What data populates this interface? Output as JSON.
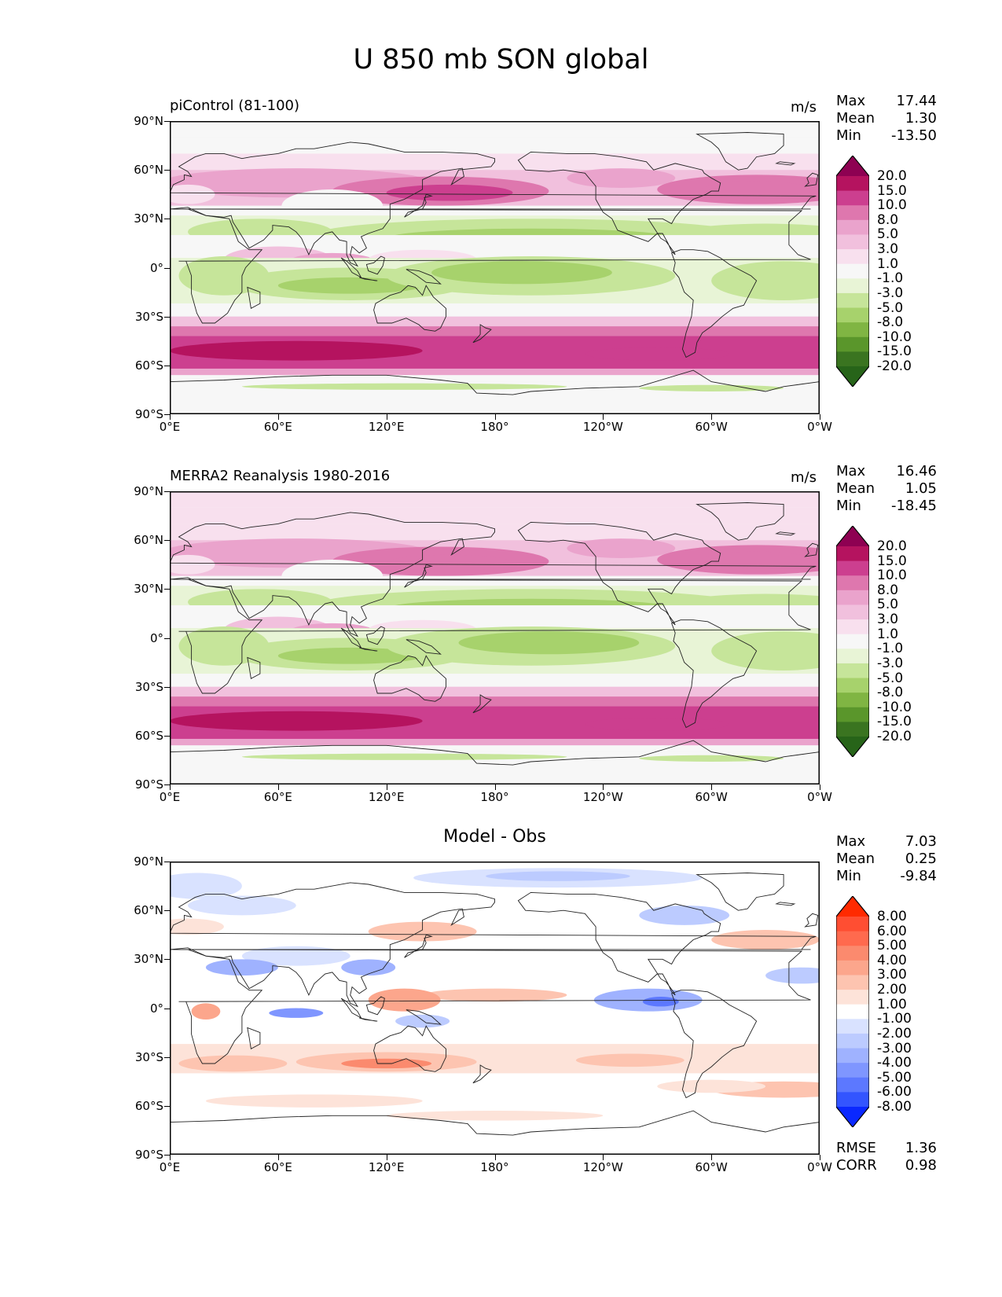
{
  "title": "U 850 mb SON global",
  "lat_ticks": [
    "90°N",
    "60°N",
    "30°N",
    "0°",
    "30°S",
    "60°S",
    "90°S"
  ],
  "lon_ticks": [
    "0°E",
    "60°E",
    "120°E",
    "180°",
    "120°W",
    "60°W",
    "0°W"
  ],
  "panels": [
    {
      "id": "model",
      "title": "piControl (81-100)",
      "units": "m/s",
      "stats": {
        "max_label": "Max",
        "max": "17.44",
        "mean_label": "Mean",
        "mean": "1.30",
        "min_label": "Min",
        "min": "-13.50"
      },
      "levels": [
        "20.0",
        "15.0",
        "10.0",
        "8.0",
        "5.0",
        "3.0",
        "1.0",
        "-1.0",
        "-3.0",
        "-5.0",
        "-8.0",
        "-10.0",
        "-15.0",
        "-20.0"
      ],
      "colors": [
        "#8e0152",
        "#b5135f",
        "#cc3f8f",
        "#de77ae",
        "#eaa3cc",
        "#f1c0dd",
        "#f8e0ee",
        "#f7f7f7",
        "#e8f4d6",
        "#c6e59a",
        "#a7d26c",
        "#80b543",
        "#5a962b",
        "#3a7420",
        "#276419"
      ],
      "palette": "div"
    },
    {
      "id": "obs",
      "title": "MERRA2 Reanalysis 1980-2016",
      "units": "m/s",
      "stats": {
        "max_label": "Max",
        "max": "16.46",
        "mean_label": "Mean",
        "mean": "1.05",
        "min_label": "Min",
        "min": "-18.45"
      },
      "levels": [
        "20.0",
        "15.0",
        "10.0",
        "8.0",
        "5.0",
        "3.0",
        "1.0",
        "-1.0",
        "-3.0",
        "-5.0",
        "-8.0",
        "-10.0",
        "-15.0",
        "-20.0"
      ],
      "colors": [
        "#8e0152",
        "#b5135f",
        "#cc3f8f",
        "#de77ae",
        "#eaa3cc",
        "#f1c0dd",
        "#f8e0ee",
        "#f7f7f7",
        "#e8f4d6",
        "#c6e59a",
        "#a7d26c",
        "#80b543",
        "#5a962b",
        "#3a7420",
        "#276419"
      ],
      "palette": "div"
    },
    {
      "id": "diff",
      "title": "Model - Obs",
      "units": "",
      "stats": {
        "max_label": "Max",
        "max": "7.03",
        "mean_label": "Mean",
        "mean": "0.25",
        "min_label": "Min",
        "min": "-9.84"
      },
      "extra": {
        "rmse_label": "RMSE",
        "rmse": "1.36",
        "corr_label": "CORR",
        "corr": "0.98"
      },
      "levels": [
        "8.00",
        "6.00",
        "5.00",
        "4.00",
        "3.00",
        "2.00",
        "1.00",
        "-1.00",
        "-2.00",
        "-3.00",
        "-4.00",
        "-5.00",
        "-6.00",
        "-8.00"
      ],
      "colors": [
        "#ff2a00",
        "#ff4e32",
        "#ff6a4e",
        "#fb8a6e",
        "#fca68c",
        "#fdc4b0",
        "#fde3d9",
        "#ffffff",
        "#d9e2ff",
        "#bccbff",
        "#9fb2ff",
        "#7f96ff",
        "#5c78ff",
        "#3355ff",
        "#0a28ff"
      ],
      "palette": "diff"
    }
  ]
}
